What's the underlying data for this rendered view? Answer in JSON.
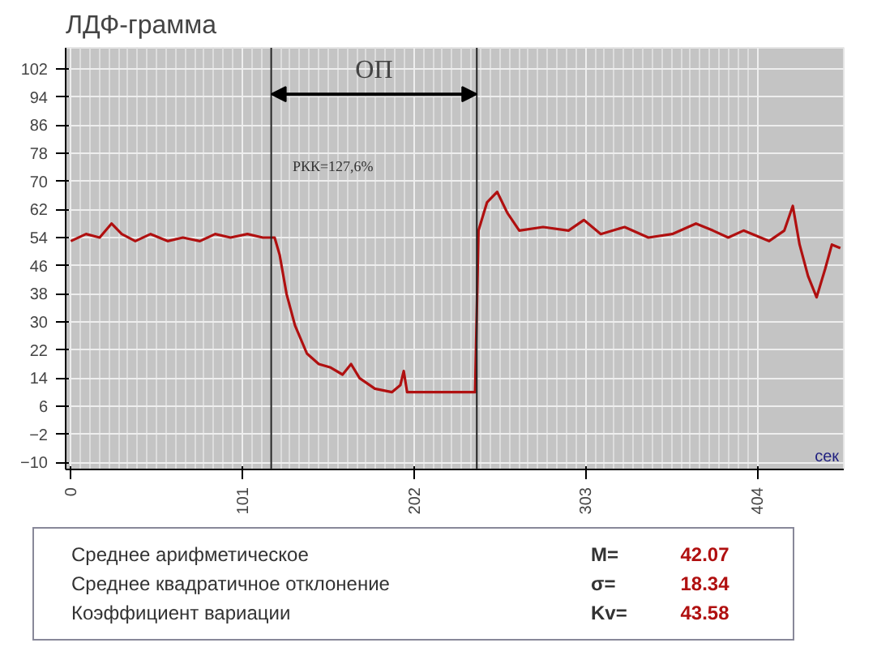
{
  "chart_data": {
    "type": "line",
    "title": "ЛДФ-грамма",
    "xlabel": "сек",
    "x": [
      0,
      9,
      17,
      24,
      30,
      38,
      47,
      57,
      66,
      76,
      85,
      94,
      104,
      113,
      120,
      123,
      127,
      132,
      139,
      146,
      153,
      160,
      165,
      170,
      179,
      189,
      194,
      196,
      198,
      202,
      217,
      238,
      240,
      245,
      251,
      257,
      264,
      278,
      293,
      302,
      312,
      326,
      340,
      354,
      368,
      378,
      387,
      396,
      411,
      420,
      425,
      429,
      434,
      439,
      444,
      448,
      453
    ],
    "series": [
      {
        "color": "#b01010",
        "values": [
          53,
          55,
          54,
          58,
          55,
          53,
          55,
          53,
          54,
          53,
          55,
          54,
          55,
          54,
          54,
          49,
          38,
          29,
          21,
          18,
          17,
          15,
          18,
          14,
          11,
          10,
          12,
          16,
          10,
          10,
          10,
          10,
          56,
          64,
          67,
          61,
          56,
          57,
          56,
          59,
          55,
          57,
          54,
          55,
          58,
          56,
          54,
          56,
          53,
          56,
          63,
          52,
          43,
          37,
          45,
          52,
          51
        ]
      }
    ],
    "xlim": [
      -3,
      455
    ],
    "ylim": [
      -12,
      108
    ],
    "xticks": [
      0,
      101,
      202,
      303,
      404
    ],
    "yticks": [
      102,
      94,
      86,
      78,
      70,
      62,
      54,
      46,
      38,
      30,
      22,
      14,
      6,
      -2,
      -10
    ],
    "grid": true,
    "ref_lines": [
      {
        "axis": "x",
        "value": 118,
        "label": null
      },
      {
        "axis": "x",
        "value": 239,
        "label": null
      }
    ],
    "annotations": [
      "ОП",
      "РКК=127,6%",
      "Среднее арифметическое",
      "M=",
      "42.07",
      "Среднее квадратичное отклонение",
      "σ=",
      "18.34",
      "Коэффициент вариации",
      "Kv=",
      "43.58"
    ]
  }
}
